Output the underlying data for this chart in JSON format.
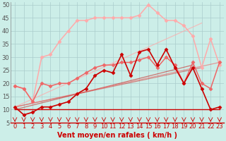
{
  "bg_color": "#cceee8",
  "grid_color": "#aacccc",
  "xlabel": "Vent moyen/en rafales ( km/h )",
  "xlim": [
    -0.5,
    23.5
  ],
  "ylim": [
    5,
    51
  ],
  "yticks": [
    5,
    10,
    15,
    20,
    25,
    30,
    35,
    40,
    45,
    50
  ],
  "xticks": [
    0,
    1,
    2,
    3,
    4,
    5,
    6,
    7,
    8,
    9,
    10,
    11,
    12,
    13,
    14,
    15,
    16,
    17,
    18,
    19,
    20,
    21,
    22,
    23
  ],
  "lines": [
    {
      "x": [
        0,
        1,
        2,
        3,
        4,
        5,
        6,
        7,
        8,
        9,
        10,
        11,
        12,
        13,
        14,
        15,
        16,
        17,
        18,
        19,
        20,
        21,
        22,
        23
      ],
      "y": [
        11,
        8,
        9,
        11,
        11,
        12,
        13,
        16,
        18,
        23,
        25,
        24,
        31,
        23,
        32,
        33,
        27,
        33,
        26,
        20,
        26,
        18,
        10,
        11
      ],
      "color": "#cc0000",
      "lw": 1.2,
      "marker": "D",
      "ms": 2.5,
      "zorder": 6,
      "alpha": 1.0
    },
    {
      "x": [
        0,
        23
      ],
      "y": [
        10,
        10
      ],
      "color": "#cc0000",
      "lw": 1.0,
      "marker": null,
      "ms": 0,
      "zorder": 3,
      "alpha": 1.0
    },
    {
      "x": [
        0,
        1,
        2,
        3,
        4,
        5,
        6,
        7,
        8,
        9,
        10,
        11,
        12,
        13,
        14,
        15,
        16,
        17,
        18,
        19,
        20,
        21,
        22,
        23
      ],
      "y": [
        19,
        18,
        13,
        20,
        19,
        20,
        20,
        22,
        24,
        26,
        27,
        27,
        28,
        28,
        29,
        30,
        26,
        30,
        27,
        20,
        28,
        20,
        18,
        28
      ],
      "color": "#ee6666",
      "lw": 1.1,
      "marker": "D",
      "ms": 2.5,
      "zorder": 4,
      "alpha": 1.0
    },
    {
      "x": [
        0,
        1,
        2,
        3,
        4,
        5,
        6,
        7,
        8,
        9,
        10,
        11,
        12,
        13,
        14,
        15,
        16,
        17,
        18,
        19,
        20,
        21,
        22,
        23
      ],
      "y": [
        19,
        18,
        13,
        30,
        31,
        36,
        40,
        44,
        44,
        45,
        45,
        45,
        45,
        45,
        46,
        50,
        47,
        44,
        44,
        42,
        38,
        26,
        37,
        27
      ],
      "color": "#ffaaaa",
      "lw": 1.1,
      "marker": "D",
      "ms": 2.5,
      "zorder": 3,
      "alpha": 1.0
    },
    {
      "x": [
        0,
        20
      ],
      "y": [
        10,
        27
      ],
      "color": "#cc0000",
      "lw": 0.9,
      "marker": null,
      "ms": 0,
      "zorder": 2,
      "alpha": 0.5
    },
    {
      "x": [
        0,
        21
      ],
      "y": [
        11,
        26
      ],
      "color": "#cc0000",
      "lw": 0.9,
      "marker": null,
      "ms": 0,
      "zorder": 2,
      "alpha": 0.4
    },
    {
      "x": [
        0,
        21
      ],
      "y": [
        11,
        43
      ],
      "color": "#ffaaaa",
      "lw": 0.9,
      "marker": null,
      "ms": 0,
      "zorder": 2,
      "alpha": 0.7
    },
    {
      "x": [
        0,
        23
      ],
      "y": [
        11,
        28
      ],
      "color": "#ee6666",
      "lw": 0.9,
      "marker": null,
      "ms": 0,
      "zorder": 2,
      "alpha": 0.6
    }
  ],
  "xlabel_color": "#cc0000",
  "xlabel_fontsize": 7,
  "tick_fontsize": 6,
  "arrow_color": "#cc0000"
}
